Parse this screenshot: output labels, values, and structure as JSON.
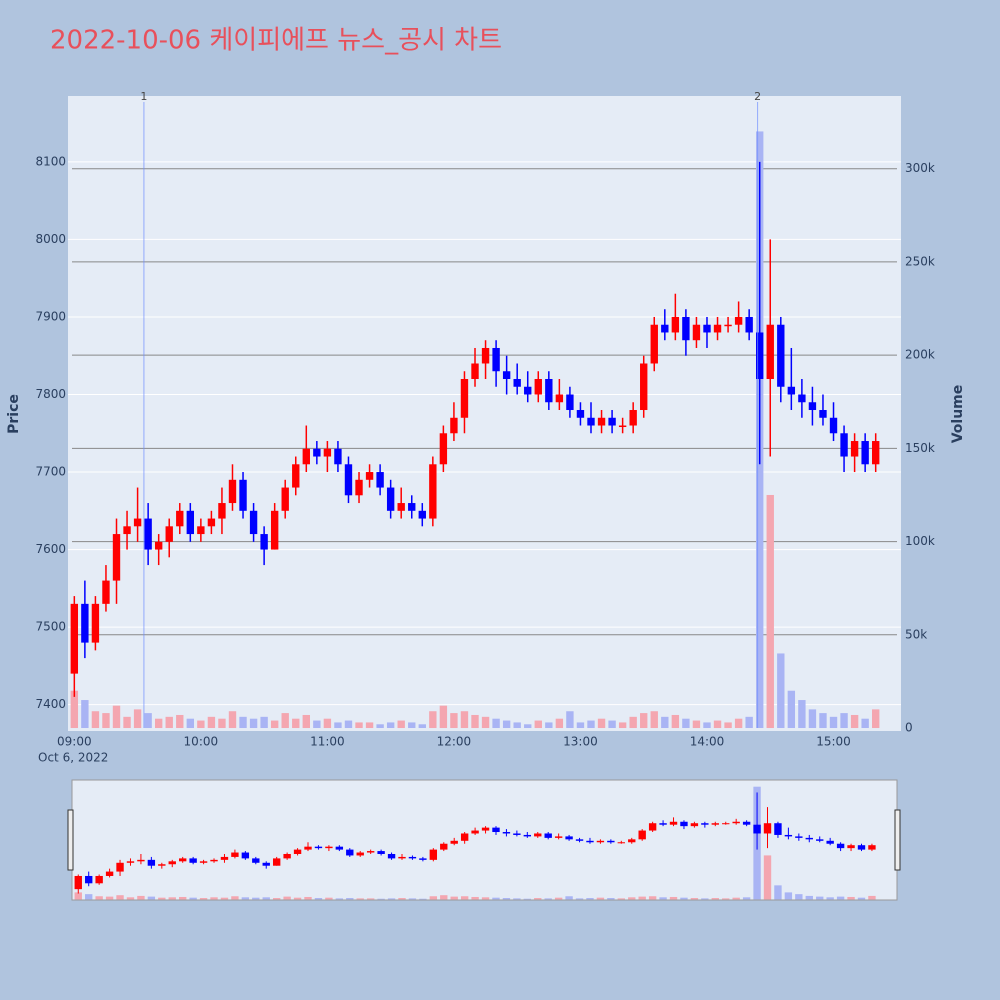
{
  "chart_data": {
    "type": "candlestick",
    "title": "2022-10-06 케이피에프 뉴스_공시 차트",
    "ylabel": "Price",
    "y2label": "Volume",
    "xaxis_date": "Oct 6, 2022",
    "up_color": "#ff0000",
    "down_color": "#0000ff",
    "up_volume_color": "#f4a6b0",
    "down_volume_color": "#a9b4f4",
    "xlim": [
      "08:57",
      "15:32"
    ],
    "xticks": [
      "09:00",
      "10:00",
      "11:00",
      "12:00",
      "13:00",
      "14:00",
      "15:00"
    ],
    "ylim": [
      7366,
      8185
    ],
    "yticks": [
      7400,
      7500,
      7600,
      7700,
      7800,
      7900,
      8000,
      8100
    ],
    "y2lim": [
      -1600,
      339000
    ],
    "y2ticks": [
      0,
      {
        "value": 50000,
        "label": "50k"
      },
      {
        "value": 100000,
        "label": "100k"
      },
      {
        "value": 150000,
        "label": "150k"
      },
      {
        "value": 200000,
        "label": "200k"
      },
      {
        "value": 250000,
        "label": "250k"
      },
      {
        "value": 300000,
        "label": "300k"
      }
    ],
    "annotations": [
      {
        "x": "09:33",
        "text": "1"
      },
      {
        "x": "14:24",
        "text": "2"
      }
    ],
    "x": [
      "09:00",
      "09:05",
      "09:10",
      "09:15",
      "09:20",
      "09:25",
      "09:30",
      "09:35",
      "09:40",
      "09:45",
      "09:50",
      "09:55",
      "10:00",
      "10:05",
      "10:10",
      "10:15",
      "10:20",
      "10:25",
      "10:30",
      "10:35",
      "10:40",
      "10:45",
      "10:50",
      "10:55",
      "11:00",
      "11:05",
      "11:10",
      "11:15",
      "11:20",
      "11:25",
      "11:30",
      "11:35",
      "11:40",
      "11:45",
      "11:50",
      "11:55",
      "12:00",
      "12:05",
      "12:10",
      "12:15",
      "12:20",
      "12:25",
      "12:30",
      "12:35",
      "12:40",
      "12:45",
      "12:50",
      "12:55",
      "13:00",
      "13:05",
      "13:10",
      "13:15",
      "13:20",
      "13:25",
      "13:30",
      "13:35",
      "13:40",
      "13:45",
      "13:50",
      "13:55",
      "14:00",
      "14:05",
      "14:10",
      "14:15",
      "14:20",
      "14:25",
      "14:30",
      "14:35",
      "14:40",
      "14:45",
      "14:50",
      "14:55",
      "15:00",
      "15:05",
      "15:10",
      "15:15",
      "15:20"
    ],
    "open": [
      7440,
      7530,
      7480,
      7530,
      7560,
      7620,
      7630,
      7640,
      7600,
      7610,
      7630,
      7650,
      7620,
      7630,
      7640,
      7660,
      7690,
      7650,
      7620,
      7600,
      7650,
      7680,
      7710,
      7730,
      7720,
      7730,
      7710,
      7670,
      7690,
      7700,
      7680,
      7650,
      7660,
      7650,
      7640,
      7710,
      7750,
      7770,
      7820,
      7840,
      7860,
      7830,
      7820,
      7810,
      7800,
      7820,
      7790,
      7800,
      7780,
      7770,
      7760,
      7770,
      7760,
      7760,
      7780,
      7840,
      7890,
      7880,
      7900,
      7870,
      7890,
      7880,
      7890,
      7890,
      7900,
      7880,
      7820,
      7890,
      7810,
      7800,
      7790,
      7780,
      7770,
      7750,
      7720,
      7740,
      7710
    ],
    "high": [
      7540,
      7560,
      7540,
      7580,
      7640,
      7650,
      7680,
      7660,
      7620,
      7640,
      7660,
      7660,
      7640,
      7650,
      7680,
      7710,
      7700,
      7660,
      7630,
      7660,
      7690,
      7720,
      7760,
      7740,
      7740,
      7740,
      7720,
      7700,
      7710,
      7710,
      7690,
      7680,
      7670,
      7660,
      7720,
      7760,
      7790,
      7830,
      7860,
      7870,
      7870,
      7850,
      7840,
      7830,
      7830,
      7830,
      7820,
      7810,
      7790,
      7790,
      7780,
      7780,
      7770,
      7790,
      7850,
      7900,
      7910,
      7930,
      7910,
      7900,
      7900,
      7900,
      7900,
      7920,
      7910,
      8100,
      8000,
      7900,
      7860,
      7820,
      7810,
      7800,
      7790,
      7760,
      7750,
      7750,
      7750
    ],
    "low": [
      7410,
      7460,
      7470,
      7520,
      7530,
      7600,
      7610,
      7580,
      7580,
      7590,
      7620,
      7610,
      7610,
      7620,
      7620,
      7650,
      7640,
      7610,
      7580,
      7600,
      7640,
      7670,
      7700,
      7710,
      7700,
      7700,
      7660,
      7660,
      7680,
      7670,
      7640,
      7640,
      7640,
      7630,
      7630,
      7700,
      7740,
      7750,
      7810,
      7820,
      7810,
      7800,
      7800,
      7790,
      7790,
      7780,
      7780,
      7770,
      7760,
      7750,
      7750,
      7750,
      7750,
      7750,
      7770,
      7830,
      7870,
      7870,
      7850,
      7860,
      7860,
      7870,
      7880,
      7880,
      7870,
      7710,
      7720,
      7790,
      7780,
      7770,
      7760,
      7760,
      7740,
      7700,
      7700,
      7700,
      7700
    ],
    "close": [
      7530,
      7480,
      7530,
      7560,
      7620,
      7630,
      7640,
      7600,
      7610,
      7630,
      7650,
      7620,
      7630,
      7640,
      7660,
      7690,
      7650,
      7620,
      7600,
      7650,
      7680,
      7710,
      7730,
      7720,
      7730,
      7710,
      7670,
      7690,
      7700,
      7680,
      7650,
      7660,
      7650,
      7640,
      7710,
      7750,
      7770,
      7820,
      7840,
      7860,
      7830,
      7820,
      7810,
      7800,
      7820,
      7790,
      7800,
      7780,
      7770,
      7760,
      7770,
      7760,
      7760,
      7780,
      7840,
      7890,
      7880,
      7900,
      7870,
      7890,
      7880,
      7890,
      7890,
      7900,
      7880,
      7820,
      7890,
      7810,
      7800,
      7790,
      7780,
      7770,
      7750,
      7720,
      7740,
      7710,
      7740
    ],
    "volume": [
      20000,
      15000,
      9000,
      8000,
      12000,
      6000,
      10000,
      8000,
      5000,
      6000,
      7000,
      5000,
      4000,
      6000,
      5000,
      9000,
      6000,
      5000,
      6000,
      4000,
      8000,
      5000,
      7000,
      4000,
      5000,
      3000,
      4000,
      3000,
      3000,
      2000,
      3000,
      4000,
      3000,
      2000,
      9000,
      12000,
      8000,
      9000,
      7000,
      6000,
      5000,
      4000,
      3000,
      2000,
      4000,
      3000,
      5000,
      9000,
      3000,
      4000,
      5000,
      4000,
      3000,
      6000,
      8000,
      9000,
      6000,
      7000,
      5000,
      4000,
      3000,
      4000,
      3000,
      5000,
      6000,
      320000,
      125000,
      40000,
      20000,
      15000,
      10000,
      8000,
      6000,
      8000,
      7000,
      5000,
      10000
    ]
  }
}
